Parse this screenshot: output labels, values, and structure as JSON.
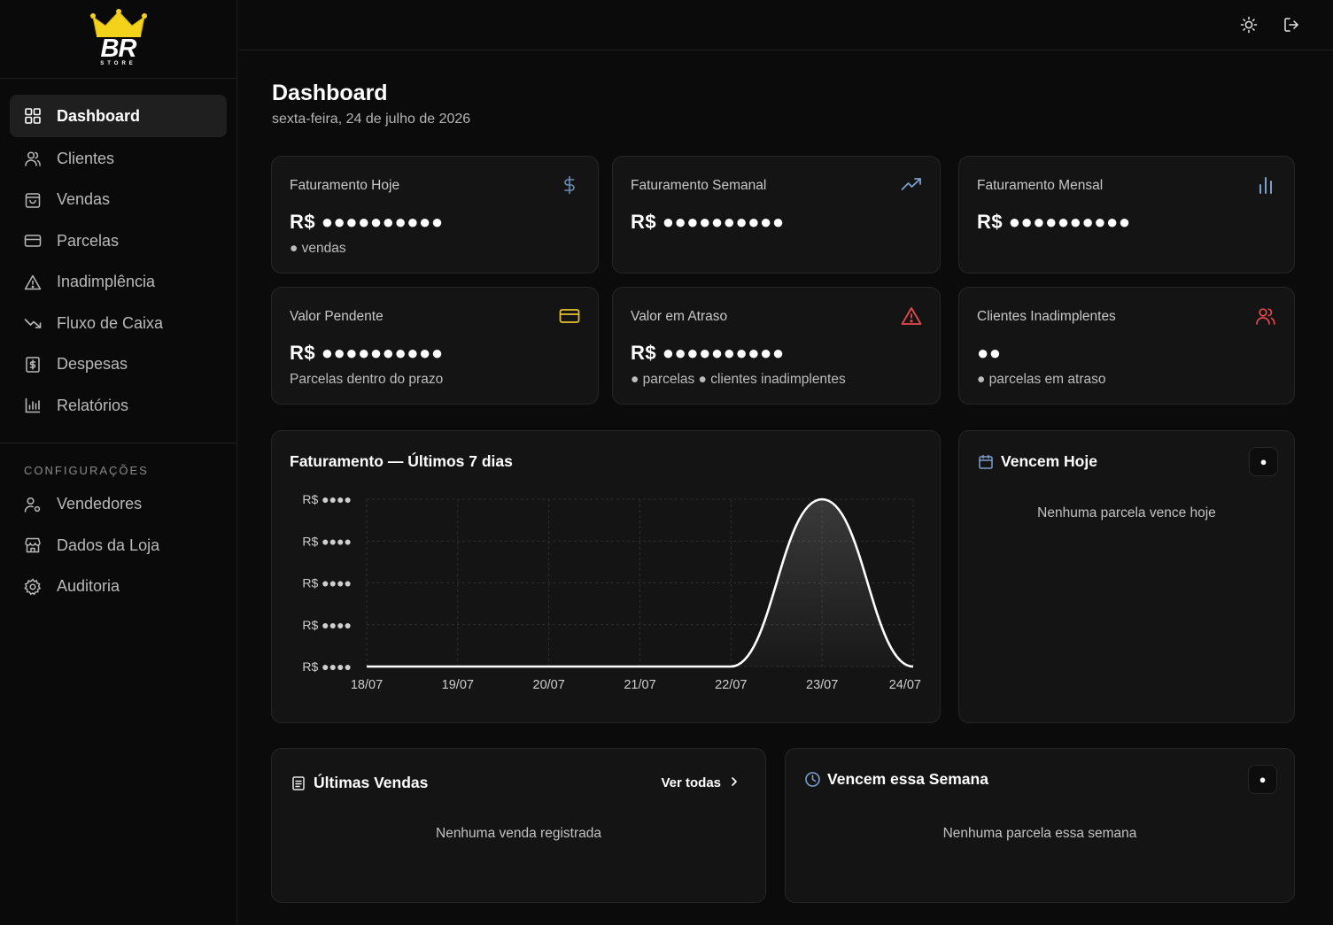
{
  "brand": {
    "logo_text": "BR",
    "logo_sub": "STORE"
  },
  "sidebar": {
    "items": [
      {
        "label": "Dashboard",
        "icon": "grid-icon",
        "active": true
      },
      {
        "label": "Clientes",
        "icon": "users-icon"
      },
      {
        "label": "Vendas",
        "icon": "shopping-bag-icon"
      },
      {
        "label": "Parcelas",
        "icon": "credit-card-icon"
      },
      {
        "label": "Inadimplência",
        "icon": "alert-triangle-icon"
      },
      {
        "label": "Fluxo de Caixa",
        "icon": "trending-down-icon"
      },
      {
        "label": "Despesas",
        "icon": "receipt-icon"
      },
      {
        "label": "Relatórios",
        "icon": "bar-chart-icon"
      }
    ],
    "section_label": "CONFIGURAÇÕES",
    "config_items": [
      {
        "label": "Vendedores",
        "icon": "user-cog-icon"
      },
      {
        "label": "Dados da Loja",
        "icon": "store-icon"
      },
      {
        "label": "Auditoria",
        "icon": "settings-icon"
      }
    ]
  },
  "topbar": {
    "theme_icon": "sun-icon",
    "logout_icon": "log-out-icon"
  },
  "header": {
    "title": "Dashboard",
    "date": "sexta-feira, 24 de julho de 2026"
  },
  "stats": [
    {
      "label": "Faturamento Hoje",
      "value": "R$ ●●●●●●●●●●",
      "sub": "● vendas",
      "icon": "dollar-icon",
      "color": "#6b8db5"
    },
    {
      "label": "Faturamento Semanal",
      "value": "R$ ●●●●●●●●●●",
      "sub": "",
      "icon": "trending-up-icon",
      "color": "#7d9fcc"
    },
    {
      "label": "Faturamento Mensal",
      "value": "R$ ●●●●●●●●●●",
      "sub": "",
      "icon": "bar-chart-icon",
      "color": "#7d9fcc"
    },
    {
      "label": "Valor Pendente",
      "value": "R$ ●●●●●●●●●●",
      "sub": "Parcelas dentro do prazo",
      "icon": "credit-card-icon",
      "color": "#e7c12e"
    },
    {
      "label": "Valor em Atraso",
      "value": "R$ ●●●●●●●●●●",
      "sub": "● parcelas ● clientes inadimplentes",
      "icon": "alert-triangle-icon",
      "color": "#e5484d"
    },
    {
      "label": "Clientes Inadimplentes",
      "value": "●●",
      "sub": "● parcelas em atraso",
      "icon": "users-icon",
      "color": "#e5484d"
    }
  ],
  "chart": {
    "title": "Faturamento — Últimos 7 dias"
  },
  "chart_data": {
    "type": "area",
    "title": "Faturamento — Últimos 7 dias",
    "categories": [
      "18/07",
      "19/07",
      "20/07",
      "21/07",
      "22/07",
      "23/07",
      "24/07"
    ],
    "values": [
      0,
      0,
      0,
      0,
      0,
      1,
      0
    ],
    "y_tick_labels": [
      "R$ ●●●●",
      "R$ ●●●●",
      "R$ ●●●●",
      "R$ ●●●●",
      "R$ ●●●●"
    ],
    "ylim": [
      0,
      1
    ],
    "grid": true,
    "line_color": "#ffffff"
  },
  "vencem_hoje": {
    "title": "Vencem Hoje",
    "badge": "●",
    "empty": "Nenhuma parcela vence hoje",
    "icon": "calendar-icon"
  },
  "ultimas_vendas": {
    "title": "Últimas Vendas",
    "link": "Ver todas",
    "empty": "Nenhuma venda registrada",
    "icon": "receipt-icon"
  },
  "vencem_semana": {
    "title": "Vencem essa Semana",
    "badge": "●",
    "empty": "Nenhuma parcela essa semana",
    "icon": "clock-icon"
  }
}
